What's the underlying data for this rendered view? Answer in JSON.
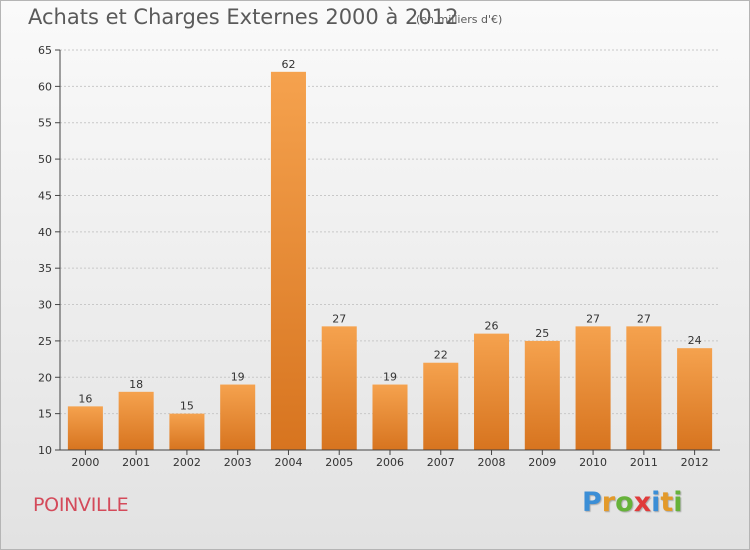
{
  "header": {
    "title": "Achats et Charges Externes 2000 à 2012",
    "subtitle": "(en milliers d'€)"
  },
  "footer": {
    "city": "POINVILLE",
    "logo_letters": [
      {
        "char": "P",
        "color": "#3b8ed6"
      },
      {
        "char": "r",
        "color": "#e39a2a"
      },
      {
        "char": "o",
        "color": "#66b23a"
      },
      {
        "char": "x",
        "color": "#e03b3b"
      },
      {
        "char": "i",
        "color": "#3b8ed6"
      },
      {
        "char": "t",
        "color": "#e39a2a"
      },
      {
        "char": "i",
        "color": "#66b23a"
      }
    ]
  },
  "colors": {
    "bar_light": "#f5a24e",
    "bar_dark": "#d7741f",
    "grid": "#c8c8c8",
    "axis": "#444444"
  },
  "chart_data": {
    "type": "bar",
    "title": "Achats et Charges Externes 2000 à 2012",
    "subtitle": "(en milliers d'€)",
    "categories": [
      "2000",
      "2001",
      "2002",
      "2003",
      "2004",
      "2005",
      "2006",
      "2007",
      "2008",
      "2009",
      "2010",
      "2011",
      "2012"
    ],
    "values": [
      16,
      18,
      15,
      19,
      62,
      27,
      19,
      22,
      26,
      25,
      27,
      27,
      24
    ],
    "ylim": [
      10,
      65
    ],
    "yticks": [
      10,
      15,
      20,
      25,
      30,
      35,
      40,
      45,
      50,
      55,
      60,
      65
    ],
    "grid": true,
    "xlabel": "",
    "ylabel": ""
  }
}
